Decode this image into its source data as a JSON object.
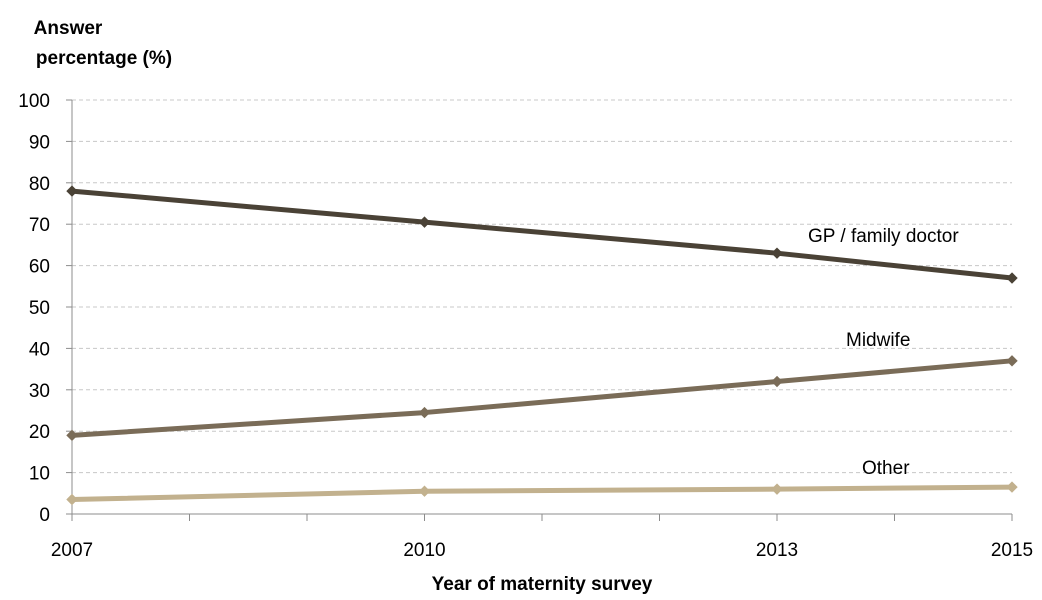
{
  "chart_data": {
    "type": "line",
    "title": "",
    "ylabel_lines": [
      "Answer",
      "percentage (%)"
    ],
    "xlabel": "Year of maternity survey",
    "xlim": [
      2007,
      2015
    ],
    "ylim": [
      0,
      100
    ],
    "x_ticks": [
      2007,
      2010,
      2013,
      2015
    ],
    "y_ticks": [
      0,
      10,
      20,
      30,
      40,
      50,
      60,
      70,
      80,
      90,
      100
    ],
    "grid": true,
    "series": [
      {
        "name": "GP / family doctor",
        "color": "#4a4236",
        "x": [
          2007,
          2010,
          2013,
          2015
        ],
        "values": [
          78,
          70.5,
          63,
          57
        ]
      },
      {
        "name": "Midwife",
        "color": "#7a6c58",
        "x": [
          2007,
          2010,
          2013,
          2015
        ],
        "values": [
          19,
          24.5,
          32,
          37
        ]
      },
      {
        "name": "Other",
        "color": "#c2b18e",
        "x": [
          2007,
          2010,
          2013,
          2015
        ],
        "values": [
          3.5,
          5.5,
          6,
          6.5
        ]
      }
    ]
  }
}
